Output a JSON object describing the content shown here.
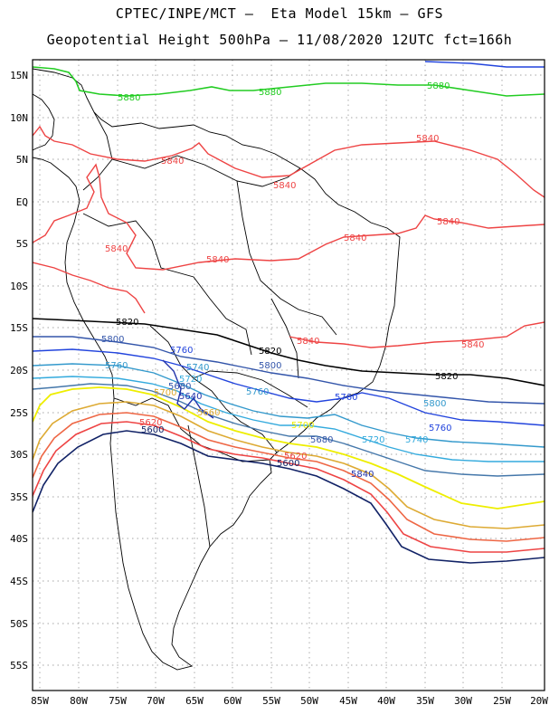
{
  "header": {
    "title_line1": "CPTEC/INPE/MCT –  Eta Model 15km – GFS",
    "title_line2": "Geopotential Height 500hPa – 11/08/2020 12UTC fct=166h"
  },
  "axes": {
    "lat_labels": [
      "15N",
      "10N",
      "5N",
      "EQ",
      "5S",
      "10S",
      "15S",
      "20S",
      "25S",
      "30S",
      "35S",
      "40S",
      "45S",
      "50S",
      "55S"
    ],
    "lon_labels": [
      "85W",
      "80W",
      "75W",
      "70W",
      "65W",
      "60W",
      "55W",
      "50W",
      "45W",
      "40W",
      "35W",
      "30W",
      "25W",
      "20W"
    ]
  },
  "contours": [
    {
      "value": "5880",
      "color": "#22cc22"
    },
    {
      "value": "5840",
      "color": "#ee4444"
    },
    {
      "value": "5820",
      "color": "#000000"
    },
    {
      "value": "5800",
      "color": "#3355aa"
    },
    {
      "value": "5760",
      "color": "#2244dd"
    },
    {
      "value": "5740",
      "color": "#3399cc"
    },
    {
      "value": "5720",
      "color": "#33aadd"
    },
    {
      "value": "5700",
      "color": "#eeee00"
    },
    {
      "value": "5680",
      "color": "#ddaa33"
    },
    {
      "value": "5660",
      "color": "#ee6644"
    },
    {
      "value": "5640",
      "color": "#2233aa"
    },
    {
      "value": "5620",
      "color": "#ee4444"
    },
    {
      "value": "5600",
      "color": "#112266"
    }
  ]
}
